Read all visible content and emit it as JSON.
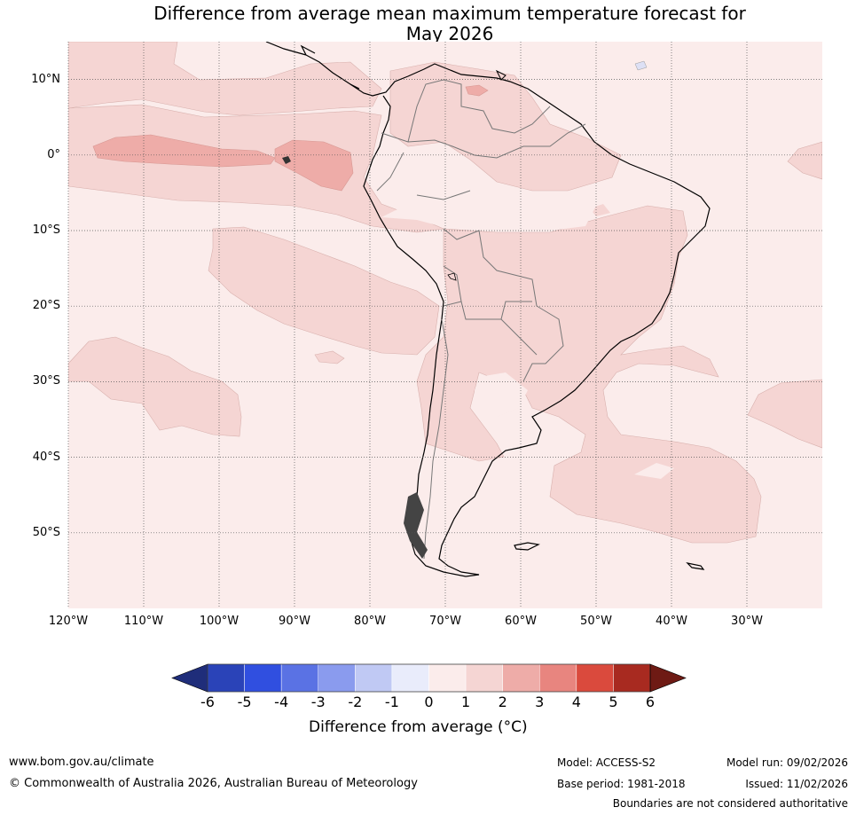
{
  "title_line1": "Difference from average mean maximum temperature forecast for",
  "title_line2": "May 2026",
  "map": {
    "lat_labels": [
      "10°N",
      "0°",
      "10°S",
      "20°S",
      "30°S",
      "40°S",
      "50°S"
    ],
    "lon_labels": [
      "120°W",
      "110°W",
      "100°W",
      "90°W",
      "80°W",
      "70°W",
      "60°W",
      "50°W",
      "40°W",
      "30°W"
    ],
    "lat_values": [
      10,
      0,
      -10,
      -20,
      -30,
      -40,
      -50
    ],
    "lon_values": [
      -120,
      -110,
      -100,
      -90,
      -80,
      -70,
      -60,
      -50,
      -40,
      -30
    ],
    "extent": {
      "lon_min": -120,
      "lon_max": -20,
      "lat_min": -60,
      "lat_max": 15
    }
  },
  "colorbar": {
    "ticks": [
      "-6",
      "-5",
      "-4",
      "-3",
      "-2",
      "-1",
      "0",
      "1",
      "2",
      "3",
      "4",
      "5",
      "6"
    ],
    "colors": [
      "#1f2d7a",
      "#2a43b8",
      "#304fe0",
      "#5a72e4",
      "#8a9bee",
      "#c0c9f4",
      "#e9ecfb",
      "#fbeceb",
      "#f5d5d3",
      "#eeaca8",
      "#e8857f",
      "#da4a3d",
      "#a82a20",
      "#6e1a14"
    ],
    "label": "Difference from average (°C)"
  },
  "footer": {
    "website": "www.bom.gov.au/climate",
    "copyright": "© Commonwealth of Australia 2026, Australian Bureau of Meteorology",
    "model": "Model: ACCESS-S2",
    "base_period": "Base period: 1981-2018",
    "model_run": "Model run: 09/02/2026",
    "issued": "Issued: 11/02/2026",
    "disclaimer": "Boundaries are not considered authoritative"
  }
}
